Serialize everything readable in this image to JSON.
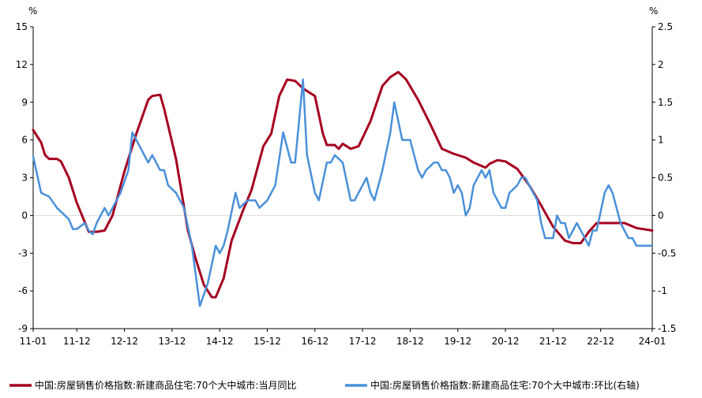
{
  "chart_data": {
    "type": "line",
    "title": "",
    "xlabel": "",
    "left_axis": {
      "unit": "%",
      "min": -9,
      "max": 15,
      "ticks": [
        15,
        12,
        9,
        6,
        3,
        0,
        -3,
        -6,
        -9
      ]
    },
    "right_axis": {
      "unit": "%",
      "min": -1.5,
      "max": 2.5,
      "ticks": [
        "2.5",
        "2",
        "1.5",
        "1",
        "0.5",
        "0",
        "-0.5",
        "-1",
        "-1.5"
      ]
    },
    "x_range": [
      "2011-01",
      "2024-01"
    ],
    "x_tick_labels": [
      "11-01",
      "11-12",
      "12-12",
      "13-12",
      "14-12",
      "15-12",
      "16-12",
      "17-12",
      "18-12",
      "19-12",
      "20-12",
      "21-12",
      "22-12",
      "24-01"
    ],
    "x_tick_months": [
      "2011-01",
      "2011-12",
      "2012-12",
      "2013-12",
      "2014-12",
      "2015-12",
      "2016-12",
      "2017-12",
      "2018-12",
      "2019-12",
      "2020-12",
      "2021-12",
      "2022-12",
      "2024-01"
    ],
    "grid": false,
    "legend_position": "bottom",
    "series": [
      {
        "name": "中国:房屋销售价格指数:新建商品住宅:70个大中城市:当月同比",
        "axis": "left",
        "color": "#a50021",
        "points": [
          [
            "2011-01",
            6.8
          ],
          [
            "2011-03",
            5.8
          ],
          [
            "2011-04",
            4.8
          ],
          [
            "2011-05",
            4.5
          ],
          [
            "2011-07",
            4.5
          ],
          [
            "2011-08",
            4.3
          ],
          [
            "2011-10",
            3.0
          ],
          [
            "2011-12",
            1.0
          ],
          [
            "2012-03",
            -1.3
          ],
          [
            "2012-05",
            -1.3
          ],
          [
            "2012-07",
            -1.2
          ],
          [
            "2012-09",
            0.0
          ],
          [
            "2012-12",
            3.5
          ],
          [
            "2013-03",
            6.5
          ],
          [
            "2013-06",
            9.2
          ],
          [
            "2013-07",
            9.5
          ],
          [
            "2013-09",
            9.6
          ],
          [
            "2013-10",
            8.5
          ],
          [
            "2014-01",
            4.5
          ],
          [
            "2014-04",
            -1.2
          ],
          [
            "2014-06",
            -3.5
          ],
          [
            "2014-08",
            -5.5
          ],
          [
            "2014-10",
            -6.5
          ],
          [
            "2014-11",
            -6.5
          ],
          [
            "2015-01",
            -5.0
          ],
          [
            "2015-03",
            -2.0
          ],
          [
            "2015-06",
            0.5
          ],
          [
            "2015-08",
            2.0
          ],
          [
            "2015-11",
            5.5
          ],
          [
            "2016-01",
            6.5
          ],
          [
            "2016-03",
            9.5
          ],
          [
            "2016-05",
            10.8
          ],
          [
            "2016-07",
            10.7
          ],
          [
            "2016-09",
            10.1
          ],
          [
            "2016-11",
            9.7
          ],
          [
            "2016-12",
            9.5
          ],
          [
            "2017-02",
            6.5
          ],
          [
            "2017-03",
            5.6
          ],
          [
            "2017-05",
            5.6
          ],
          [
            "2017-06",
            5.3
          ],
          [
            "2017-07",
            5.7
          ],
          [
            "2017-09",
            5.3
          ],
          [
            "2017-11",
            5.5
          ],
          [
            "2018-02",
            7.5
          ],
          [
            "2018-05",
            10.3
          ],
          [
            "2018-07",
            11.0
          ],
          [
            "2018-09",
            11.4
          ],
          [
            "2018-11",
            10.8
          ],
          [
            "2019-02",
            9.2
          ],
          [
            "2019-05",
            7.3
          ],
          [
            "2019-08",
            5.3
          ],
          [
            "2019-11",
            4.9
          ],
          [
            "2020-02",
            4.6
          ],
          [
            "2020-04",
            4.2
          ],
          [
            "2020-07",
            3.8
          ],
          [
            "2020-08",
            4.1
          ],
          [
            "2020-10",
            4.4
          ],
          [
            "2020-12",
            4.3
          ],
          [
            "2021-03",
            3.7
          ],
          [
            "2021-06",
            2.4
          ],
          [
            "2021-09",
            0.8
          ],
          [
            "2021-12",
            -0.9
          ],
          [
            "2022-03",
            -2.0
          ],
          [
            "2022-05",
            -2.2
          ],
          [
            "2022-07",
            -2.2
          ],
          [
            "2022-09",
            -1.3
          ],
          [
            "2022-11",
            -0.6
          ],
          [
            "2023-02",
            -0.6
          ],
          [
            "2023-06",
            -0.6
          ],
          [
            "2023-09",
            -1.0
          ],
          [
            "2024-01",
            -1.2
          ]
        ]
      },
      {
        "name": "中国:房屋销售价格指数:新建商品住宅:70个大中城市:环比(右轴)",
        "axis": "right",
        "color": "#4a90d9",
        "points": [
          [
            "2011-01",
            0.78
          ],
          [
            "2011-03",
            0.3
          ],
          [
            "2011-05",
            0.25
          ],
          [
            "2011-07",
            0.1
          ],
          [
            "2011-09",
            0.0
          ],
          [
            "2011-10",
            -0.05
          ],
          [
            "2011-11",
            -0.18
          ],
          [
            "2011-12",
            -0.18
          ],
          [
            "2012-02",
            -0.1
          ],
          [
            "2012-03",
            -0.2
          ],
          [
            "2012-04",
            -0.25
          ],
          [
            "2012-05",
            -0.1
          ],
          [
            "2012-07",
            0.1
          ],
          [
            "2012-08",
            0.0
          ],
          [
            "2012-09",
            0.1
          ],
          [
            "2012-11",
            0.3
          ],
          [
            "2013-01",
            0.6
          ],
          [
            "2013-02",
            1.1
          ],
          [
            "2013-04",
            0.9
          ],
          [
            "2013-06",
            0.7
          ],
          [
            "2013-07",
            0.8
          ],
          [
            "2013-09",
            0.6
          ],
          [
            "2013-10",
            0.6
          ],
          [
            "2013-11",
            0.4
          ],
          [
            "2014-01",
            0.3
          ],
          [
            "2014-03",
            0.1
          ],
          [
            "2014-05",
            -0.4
          ],
          [
            "2014-07",
            -1.2
          ],
          [
            "2014-09",
            -0.9
          ],
          [
            "2014-11",
            -0.4
          ],
          [
            "2014-12",
            -0.5
          ],
          [
            "2015-01",
            -0.4
          ],
          [
            "2015-02",
            -0.2
          ],
          [
            "2015-04",
            0.3
          ],
          [
            "2015-05",
            0.1
          ],
          [
            "2015-07",
            0.2
          ],
          [
            "2015-09",
            0.2
          ],
          [
            "2015-10",
            0.1
          ],
          [
            "2015-12",
            0.2
          ],
          [
            "2016-02",
            0.4
          ],
          [
            "2016-04",
            1.1
          ],
          [
            "2016-06",
            0.7
          ],
          [
            "2016-07",
            0.7
          ],
          [
            "2016-09",
            1.8
          ],
          [
            "2016-10",
            0.8
          ],
          [
            "2016-12",
            0.3
          ],
          [
            "2017-01",
            0.2
          ],
          [
            "2017-03",
            0.7
          ],
          [
            "2017-04",
            0.7
          ],
          [
            "2017-05",
            0.8
          ],
          [
            "2017-07",
            0.7
          ],
          [
            "2017-09",
            0.2
          ],
          [
            "2017-10",
            0.2
          ],
          [
            "2017-12",
            0.4
          ],
          [
            "2018-01",
            0.5
          ],
          [
            "2018-02",
            0.3
          ],
          [
            "2018-03",
            0.2
          ],
          [
            "2018-05",
            0.6
          ],
          [
            "2018-07",
            1.1
          ],
          [
            "2018-08",
            1.5
          ],
          [
            "2018-10",
            1.0
          ],
          [
            "2018-12",
            1.0
          ],
          [
            "2019-02",
            0.6
          ],
          [
            "2019-03",
            0.5
          ],
          [
            "2019-04",
            0.6
          ],
          [
            "2019-06",
            0.7
          ],
          [
            "2019-07",
            0.7
          ],
          [
            "2019-08",
            0.6
          ],
          [
            "2019-09",
            0.6
          ],
          [
            "2019-10",
            0.5
          ],
          [
            "2019-11",
            0.3
          ],
          [
            "2019-12",
            0.4
          ],
          [
            "2020-01",
            0.3
          ],
          [
            "2020-02",
            0.0
          ],
          [
            "2020-03",
            0.1
          ],
          [
            "2020-04",
            0.4
          ],
          [
            "2020-06",
            0.6
          ],
          [
            "2020-07",
            0.5
          ],
          [
            "2020-08",
            0.6
          ],
          [
            "2020-09",
            0.3
          ],
          [
            "2020-11",
            0.1
          ],
          [
            "2020-12",
            0.1
          ],
          [
            "2021-01",
            0.3
          ],
          [
            "2021-03",
            0.4
          ],
          [
            "2021-04",
            0.5
          ],
          [
            "2021-05",
            0.5
          ],
          [
            "2021-07",
            0.3
          ],
          [
            "2021-08",
            0.2
          ],
          [
            "2021-09",
            -0.1
          ],
          [
            "2021-10",
            -0.3
          ],
          [
            "2021-12",
            -0.3
          ],
          [
            "2022-01",
            0.0
          ],
          [
            "2022-02",
            -0.1
          ],
          [
            "2022-03",
            -0.1
          ],
          [
            "2022-04",
            -0.3
          ],
          [
            "2022-05",
            -0.2
          ],
          [
            "2022-06",
            -0.1
          ],
          [
            "2022-08",
            -0.3
          ],
          [
            "2022-09",
            -0.4
          ],
          [
            "2022-10",
            -0.2
          ],
          [
            "2022-11",
            -0.2
          ],
          [
            "2023-01",
            0.3
          ],
          [
            "2023-02",
            0.4
          ],
          [
            "2023-03",
            0.3
          ],
          [
            "2023-04",
            0.1
          ],
          [
            "2023-05",
            -0.1
          ],
          [
            "2023-06",
            -0.2
          ],
          [
            "2023-07",
            -0.3
          ],
          [
            "2023-08",
            -0.3
          ],
          [
            "2023-09",
            -0.4
          ],
          [
            "2023-10",
            -0.4
          ],
          [
            "2023-12",
            -0.4
          ],
          [
            "2024-01",
            -0.4
          ]
        ]
      }
    ]
  }
}
